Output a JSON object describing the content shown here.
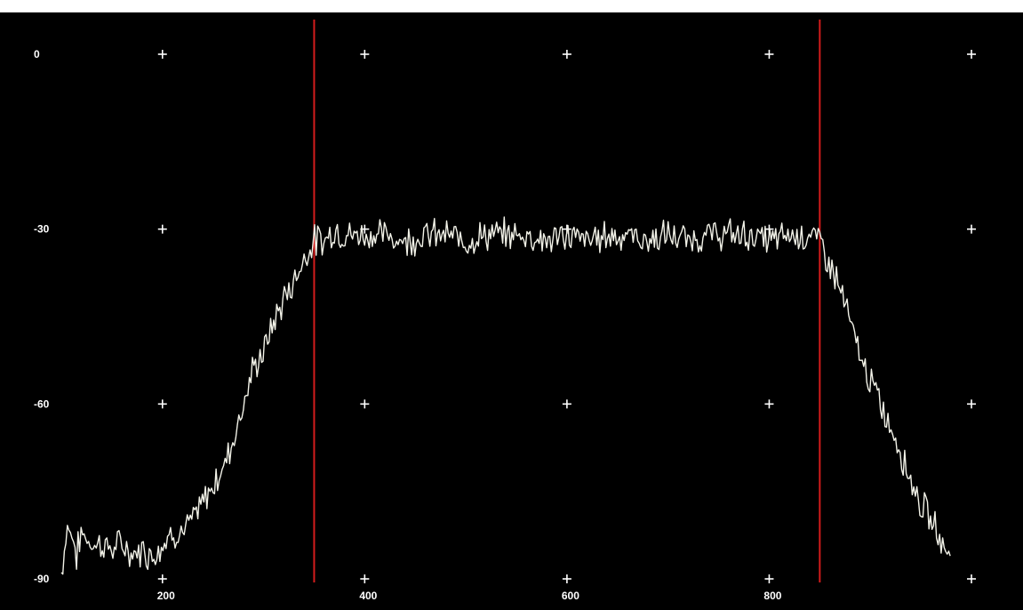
{
  "chart_data": {
    "type": "line",
    "title": "",
    "xlabel": "",
    "ylabel": "",
    "xlim": [
      100,
      1000
    ],
    "ylim": [
      -90,
      0
    ],
    "x_ticks": [
      200,
      400,
      600,
      800
    ],
    "y_ticks": [
      0,
      -30,
      -60,
      -90
    ],
    "grid_markers": "plus-crosses",
    "legend": "none",
    "series": [
      {
        "x": [
          100,
          106,
          110,
          115,
          120,
          130,
          140,
          150,
          160,
          170,
          180,
          190,
          200,
          210,
          220,
          230,
          240,
          250,
          260,
          270,
          280,
          290,
          300,
          310,
          320,
          330,
          340,
          350,
          360,
          370,
          380,
          390,
          400,
          420,
          440,
          460,
          480,
          500,
          520,
          540,
          560,
          580,
          600,
          620,
          640,
          660,
          680,
          700,
          720,
          740,
          760,
          780,
          800,
          820,
          840,
          850,
          860,
          870,
          880,
          890,
          900,
          910,
          920,
          930,
          940,
          950,
          960,
          970,
          980
        ],
        "y": [
          -89,
          -81,
          -82,
          -86,
          -82,
          -84,
          -84,
          -85,
          -84,
          -86,
          -85,
          -86,
          -84,
          -82,
          -82,
          -80,
          -77,
          -74,
          -71,
          -66,
          -60,
          -54,
          -51,
          -46,
          -42,
          -39,
          -35,
          -32,
          -32,
          -30,
          -31,
          -31,
          -31,
          -31,
          -32,
          -31,
          -31,
          -32,
          -31,
          -31,
          -31,
          -32,
          -31,
          -32,
          -31,
          -31,
          -32,
          -31,
          -32,
          -31,
          -31,
          -31,
          -32,
          -31,
          -31,
          -32,
          -36,
          -40,
          -46,
          -52,
          -56,
          -60,
          -64,
          -68,
          -73,
          -77,
          -80,
          -83,
          -87
        ],
        "color": "#f2f2e8"
      }
    ],
    "markers": [
      {
        "x": 350,
        "color": "#d41c1c"
      },
      {
        "x": 850,
        "color": "#d41c1c"
      }
    ],
    "background": "#000000",
    "tick_color": "#ffffff"
  }
}
